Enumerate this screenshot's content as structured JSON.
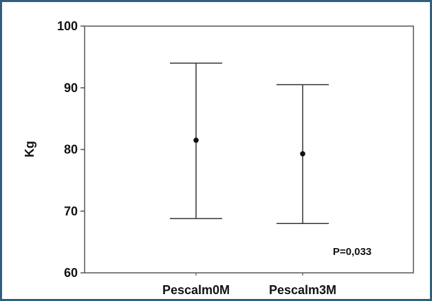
{
  "chart_data": {
    "type": "scatter",
    "subtype": "error-bar",
    "categories": [
      "Pescalm0M",
      "Pescalm3M"
    ],
    "series": [
      {
        "values": [
          81.5,
          79.3
        ],
        "lower": [
          68.8,
          68.0
        ],
        "upper": [
          94.0,
          90.5
        ]
      }
    ],
    "ylabel": "Kg",
    "xlabel": "",
    "ylim": [
      60,
      100
    ],
    "yticks": [
      60,
      70,
      80,
      90,
      100
    ],
    "annotation": "P=0,033",
    "grid": false,
    "colors": {
      "frame": "#2f5f7f",
      "line": "#333333",
      "marker": "#111111",
      "axis": "#555555"
    }
  }
}
